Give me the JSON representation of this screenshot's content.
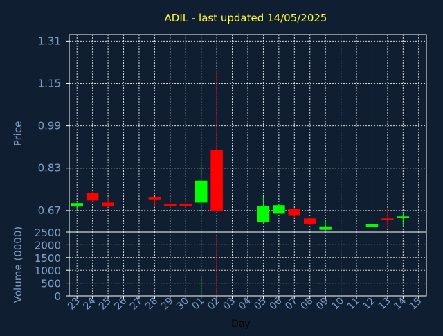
{
  "chart_data": {
    "type": "candlestick",
    "title": "ADIL - last updated 14/05/2025",
    "xlabel": "Day",
    "price_panel": {
      "ylabel": "Price",
      "yticks": [
        0.67,
        0.83,
        0.99,
        1.15,
        1.31
      ],
      "ylim": [
        0.5885,
        1.3345
      ],
      "grid": true
    },
    "volume_panel": {
      "ylabel": "Volume (0000)",
      "yticks": [
        0,
        500,
        1000,
        1500,
        2000,
        2500
      ],
      "ylim": [
        0,
        2500
      ],
      "grid": true
    },
    "categories": [
      "23",
      "24",
      "25",
      "26",
      "27",
      "28",
      "29",
      "30",
      "01",
      "02",
      "03",
      "04",
      "05",
      "06",
      "07",
      "08",
      "09",
      "10",
      "11",
      "12",
      "13",
      "14",
      "15"
    ],
    "candles": [
      {
        "day": "23",
        "open": 0.685,
        "high": 0.7,
        "low": 0.675,
        "close": 0.698,
        "volume": 0
      },
      {
        "day": "24",
        "open": 0.736,
        "high": 0.74,
        "low": 0.7,
        "close": 0.708,
        "volume": 0
      },
      {
        "day": "25",
        "open": 0.7,
        "high": 0.718,
        "low": 0.682,
        "close": 0.685,
        "volume": 0
      },
      {
        "day": "28",
        "open": 0.72,
        "high": 0.722,
        "low": 0.683,
        "close": 0.712,
        "volume": 0
      },
      {
        "day": "29",
        "open": 0.694,
        "high": 0.72,
        "low": 0.68,
        "close": 0.688,
        "volume": 0
      },
      {
        "day": "30",
        "open": 0.696,
        "high": 0.712,
        "low": 0.685,
        "close": 0.688,
        "volume": 0
      },
      {
        "day": "01",
        "open": 0.7,
        "high": 0.85,
        "low": 0.65,
        "close": 0.783,
        "volume": 700
      },
      {
        "day": "02",
        "open": 0.9,
        "high": 1.2,
        "low": 0.668,
        "close": 0.668,
        "volume": 2350
      },
      {
        "day": "05",
        "open": 0.625,
        "high": 0.72,
        "low": 0.62,
        "close": 0.688,
        "volume": 0
      },
      {
        "day": "06",
        "open": 0.658,
        "high": 0.693,
        "low": 0.658,
        "close": 0.69,
        "volume": 0
      },
      {
        "day": "07",
        "open": 0.675,
        "high": 0.68,
        "low": 0.643,
        "close": 0.65,
        "volume": 0
      },
      {
        "day": "08",
        "open": 0.64,
        "high": 0.642,
        "low": 0.615,
        "close": 0.62,
        "volume": 0
      },
      {
        "day": "09",
        "open": 0.597,
        "high": 0.632,
        "low": 0.588,
        "close": 0.61,
        "volume": 0
      },
      {
        "day": "12",
        "open": 0.608,
        "high": 0.62,
        "low": 0.605,
        "close": 0.618,
        "volume": 0
      },
      {
        "day": "13",
        "open": 0.64,
        "high": 0.678,
        "low": 0.6,
        "close": 0.634,
        "volume": 0
      },
      {
        "day": "14",
        "open": 0.645,
        "high": 0.66,
        "low": 0.612,
        "close": 0.648,
        "volume": 0
      }
    ],
    "colors": {
      "background": "#0f1e31",
      "text": "#7f9fc8",
      "title": "#ffff33",
      "axis": "#ffffff",
      "grid": "#d9d9d9",
      "up": "#00ff00",
      "down": "#ff0000"
    }
  }
}
